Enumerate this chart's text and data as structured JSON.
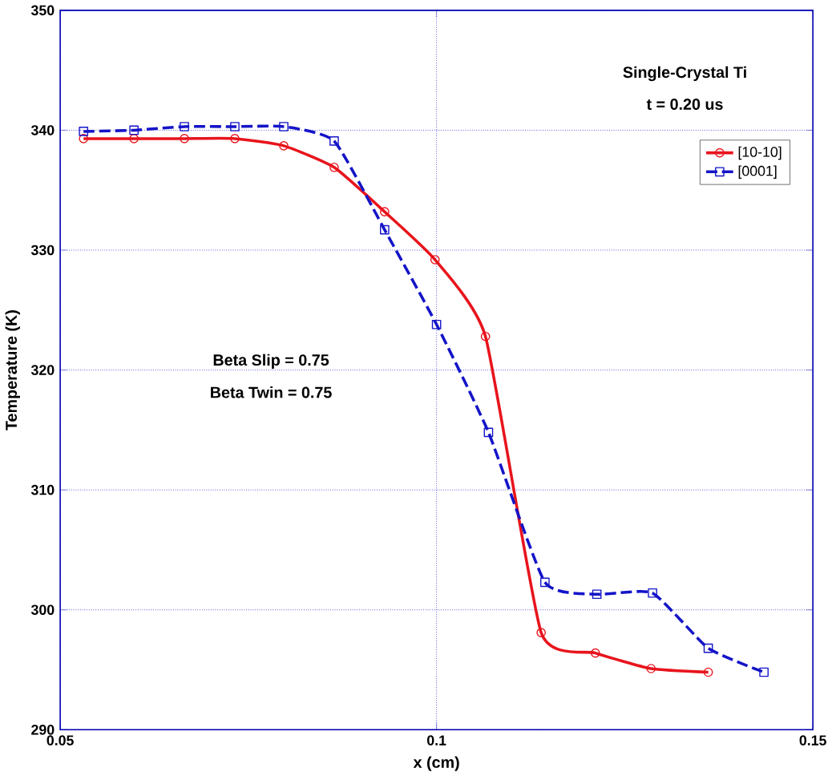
{
  "chart_data": {
    "type": "line",
    "xlabel": "x (cm)",
    "ylabel": "Temperature (K)",
    "annotations": [
      "Single-Crystal Ti",
      "t = 0.20 us",
      "Beta Slip  = 0.75",
      "Beta Twin = 0.75"
    ],
    "series": [
      {
        "name": "[10-10]",
        "color": "#e8141c",
        "marker": "circle",
        "line_style": "solid",
        "x": [
          0.0531,
          0.0598,
          0.0665,
          0.0732,
          0.0797,
          0.0864,
          0.0931,
          0.0998,
          0.1065,
          0.1139,
          0.1211,
          0.1285,
          0.1361
        ],
        "values": [
          339.3,
          339.3,
          339.3,
          339.3,
          338.7,
          336.9,
          333.2,
          329.2,
          322.8,
          298.1,
          296.4,
          295.1,
          294.8
        ]
      },
      {
        "name": "[0001]",
        "color": "#1414c8",
        "marker": "square",
        "line_style": "dashed",
        "x": [
          0.0531,
          0.0598,
          0.0665,
          0.0732,
          0.0797,
          0.0864,
          0.0931,
          0.1,
          0.1069,
          0.1144,
          0.1213,
          0.1287,
          0.1361,
          0.1435
        ],
        "values": [
          339.9,
          340.0,
          340.3,
          340.3,
          340.3,
          339.1,
          331.7,
          323.8,
          314.8,
          302.3,
          301.3,
          301.4,
          296.8,
          294.8
        ]
      }
    ],
    "xlim": [
      0.05,
      0.15
    ],
    "ylim": [
      290,
      350
    ],
    "xticks": [
      {
        "value": 0.05,
        "label": "0.05"
      },
      {
        "value": 0.1,
        "label": "0.1"
      },
      {
        "value": 0.15,
        "label": "0.15"
      }
    ],
    "yticks": [
      290,
      300,
      310,
      320,
      330,
      340,
      350
    ],
    "grid": true,
    "legend": "top right"
  }
}
